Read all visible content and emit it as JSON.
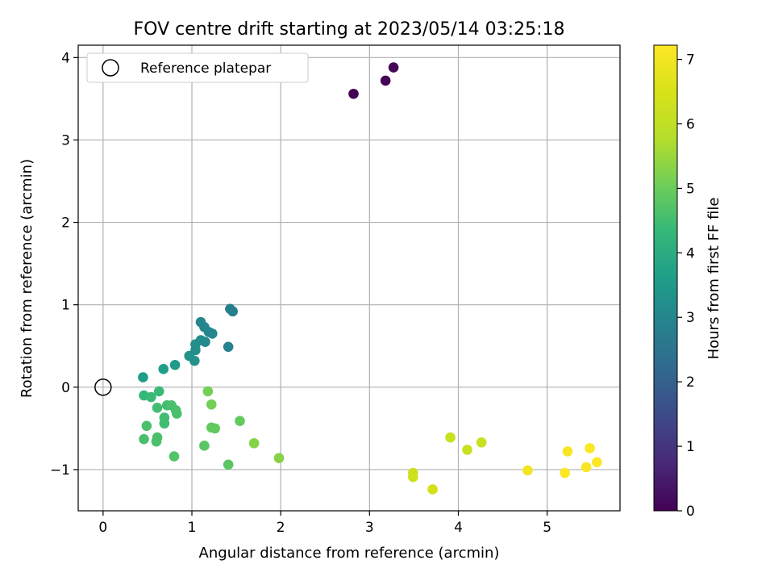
{
  "chart_data": {
    "type": "scatter",
    "title": "FOV centre drift starting at 2023/05/14 03:25:18",
    "xlabel": "Angular distance from reference (arcmin)",
    "ylabel": "Rotation from reference (arcmin)",
    "xlim": [
      -0.28,
      5.82
    ],
    "ylim": [
      -1.5,
      4.15
    ],
    "xticks": [
      0,
      1,
      2,
      3,
      4,
      5
    ],
    "yticks": [
      -1,
      0,
      1,
      2,
      3,
      4
    ],
    "grid": true,
    "legend": {
      "placement": "top-left",
      "entries": [
        "Reference platepar"
      ]
    },
    "reference_point": {
      "x": 0,
      "y": 0
    },
    "colorbar": {
      "label": "Hours from first FF file",
      "colormap": "viridis",
      "range": [
        0,
        7.22
      ],
      "ticks": [
        0,
        1,
        2,
        3,
        4,
        5,
        6,
        7
      ]
    },
    "points": [
      {
        "x": 2.82,
        "y": 3.56,
        "c": 0.0
      },
      {
        "x": 3.18,
        "y": 3.72,
        "c": 0.05
      },
      {
        "x": 3.27,
        "y": 3.88,
        "c": 0.1
      },
      {
        "x": 0.45,
        "y": 0.12,
        "c": 3.6
      },
      {
        "x": 0.68,
        "y": 0.22,
        "c": 3.6
      },
      {
        "x": 0.81,
        "y": 0.27,
        "c": 3.5
      },
      {
        "x": 0.97,
        "y": 0.38,
        "c": 3.3
      },
      {
        "x": 1.03,
        "y": 0.32,
        "c": 3.3
      },
      {
        "x": 1.04,
        "y": 0.45,
        "c": 3.2
      },
      {
        "x": 1.04,
        "y": 0.52,
        "c": 3.2
      },
      {
        "x": 1.1,
        "y": 0.57,
        "c": 3.2
      },
      {
        "x": 1.15,
        "y": 0.55,
        "c": 3.1
      },
      {
        "x": 1.1,
        "y": 0.79,
        "c": 3.0
      },
      {
        "x": 1.14,
        "y": 0.73,
        "c": 3.0
      },
      {
        "x": 1.19,
        "y": 0.67,
        "c": 3.0
      },
      {
        "x": 1.23,
        "y": 0.65,
        "c": 3.0
      },
      {
        "x": 1.41,
        "y": 0.49,
        "c": 2.9
      },
      {
        "x": 1.43,
        "y": 0.95,
        "c": 2.8
      },
      {
        "x": 1.46,
        "y": 0.92,
        "c": 2.8
      },
      {
        "x": 0.46,
        "y": -0.1,
        "c": 4.3
      },
      {
        "x": 0.54,
        "y": -0.12,
        "c": 4.4
      },
      {
        "x": 0.63,
        "y": -0.05,
        "c": 4.4
      },
      {
        "x": 0.61,
        "y": -0.25,
        "c": 4.5
      },
      {
        "x": 0.72,
        "y": -0.22,
        "c": 4.5
      },
      {
        "x": 0.77,
        "y": -0.22,
        "c": 4.6
      },
      {
        "x": 0.82,
        "y": -0.28,
        "c": 4.6
      },
      {
        "x": 0.83,
        "y": -0.32,
        "c": 4.6
      },
      {
        "x": 0.69,
        "y": -0.37,
        "c": 4.5
      },
      {
        "x": 0.69,
        "y": -0.44,
        "c": 4.5
      },
      {
        "x": 0.49,
        "y": -0.47,
        "c": 4.6
      },
      {
        "x": 0.46,
        "y": -0.63,
        "c": 4.6
      },
      {
        "x": 0.61,
        "y": -0.61,
        "c": 4.6
      },
      {
        "x": 0.6,
        "y": -0.66,
        "c": 4.6
      },
      {
        "x": 0.8,
        "y": -0.84,
        "c": 4.7
      },
      {
        "x": 1.18,
        "y": -0.05,
        "c": 5.1
      },
      {
        "x": 1.22,
        "y": -0.21,
        "c": 5.1
      },
      {
        "x": 1.22,
        "y": -0.49,
        "c": 4.9
      },
      {
        "x": 1.26,
        "y": -0.5,
        "c": 4.9
      },
      {
        "x": 1.54,
        "y": -0.41,
        "c": 4.9
      },
      {
        "x": 1.14,
        "y": -0.71,
        "c": 4.8
      },
      {
        "x": 1.41,
        "y": -0.94,
        "c": 4.8
      },
      {
        "x": 1.7,
        "y": -0.68,
        "c": 5.3
      },
      {
        "x": 1.98,
        "y": -0.86,
        "c": 5.3
      },
      {
        "x": 3.91,
        "y": -0.61,
        "c": 6.2
      },
      {
        "x": 4.1,
        "y": -0.76,
        "c": 6.2
      },
      {
        "x": 4.26,
        "y": -0.67,
        "c": 6.2
      },
      {
        "x": 3.49,
        "y": -1.04,
        "c": 6.3
      },
      {
        "x": 3.49,
        "y": -1.09,
        "c": 6.3
      },
      {
        "x": 3.71,
        "y": -1.24,
        "c": 6.4
      },
      {
        "x": 4.78,
        "y": -1.01,
        "c": 7.0
      },
      {
        "x": 5.2,
        "y": -1.04,
        "c": 7.2
      },
      {
        "x": 5.23,
        "y": -0.78,
        "c": 7.1
      },
      {
        "x": 5.44,
        "y": -0.97,
        "c": 7.1
      },
      {
        "x": 5.48,
        "y": -0.74,
        "c": 7.2
      },
      {
        "x": 5.56,
        "y": -0.91,
        "c": 7.2
      }
    ]
  }
}
